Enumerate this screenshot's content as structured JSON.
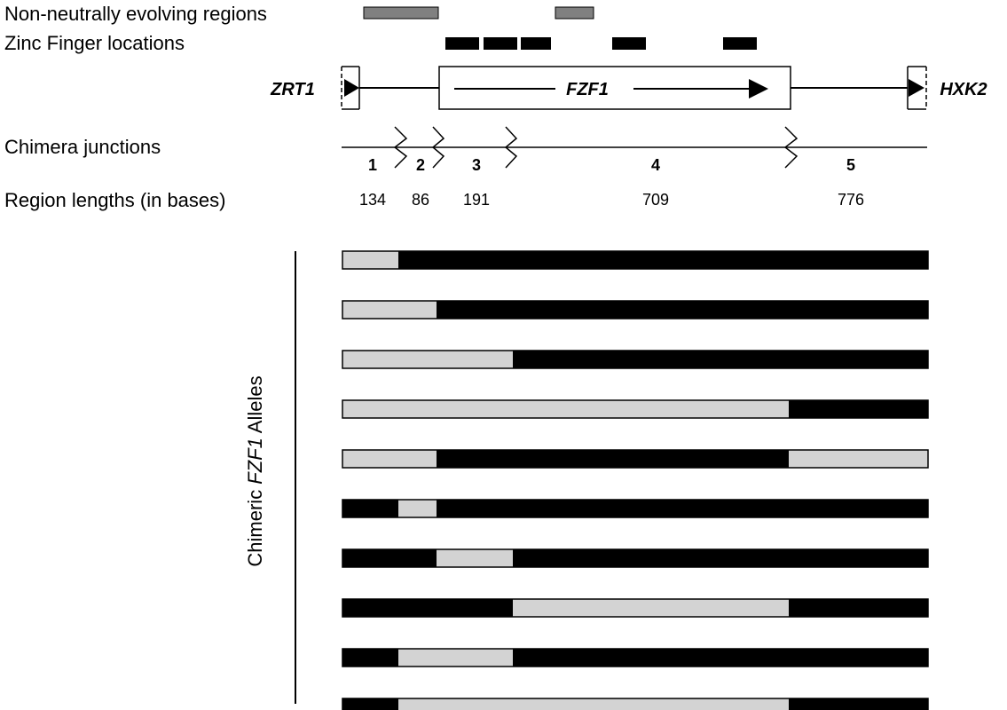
{
  "labels": {
    "non_neutral": "Non-neutrally evolving regions",
    "zinc_finger": "Zinc Finger locations",
    "chimera_junctions": "Chimera junctions",
    "region_lengths": "Region lengths (in bases)",
    "alleles_prefix": "Chimeric ",
    "alleles_gene": "FZF1",
    "alleles_suffix": " Alleles"
  },
  "genes": {
    "left": "ZRT1",
    "center": "FZF1",
    "right": "HXK2"
  },
  "regions": [
    {
      "id": "1",
      "length": "134"
    },
    {
      "id": "2",
      "length": "86"
    },
    {
      "id": "3",
      "length": "191"
    },
    {
      "id": "4",
      "length": "709"
    },
    {
      "id": "5",
      "length": "776"
    }
  ],
  "alleles": [
    [
      "light",
      "dark",
      "dark",
      "dark",
      "dark"
    ],
    [
      "light",
      "light",
      "dark",
      "dark",
      "dark"
    ],
    [
      "light",
      "light",
      "light",
      "dark",
      "dark"
    ],
    [
      "light",
      "light",
      "light",
      "light",
      "dark"
    ],
    [
      "light",
      "light",
      "dark",
      "dark",
      "light"
    ],
    [
      "dark",
      "light",
      "dark",
      "dark",
      "dark"
    ],
    [
      "dark",
      "dark",
      "light",
      "dark",
      "dark"
    ],
    [
      "dark",
      "dark",
      "dark",
      "light",
      "dark"
    ],
    [
      "dark",
      "light",
      "light",
      "dark",
      "dark"
    ],
    [
      "dark",
      "light",
      "light",
      "light",
      "dark"
    ]
  ],
  "colors": {
    "light": "#d3d3d3",
    "dark": "#000000",
    "non_neutral": "#808080",
    "zinc_finger": "#000000"
  }
}
